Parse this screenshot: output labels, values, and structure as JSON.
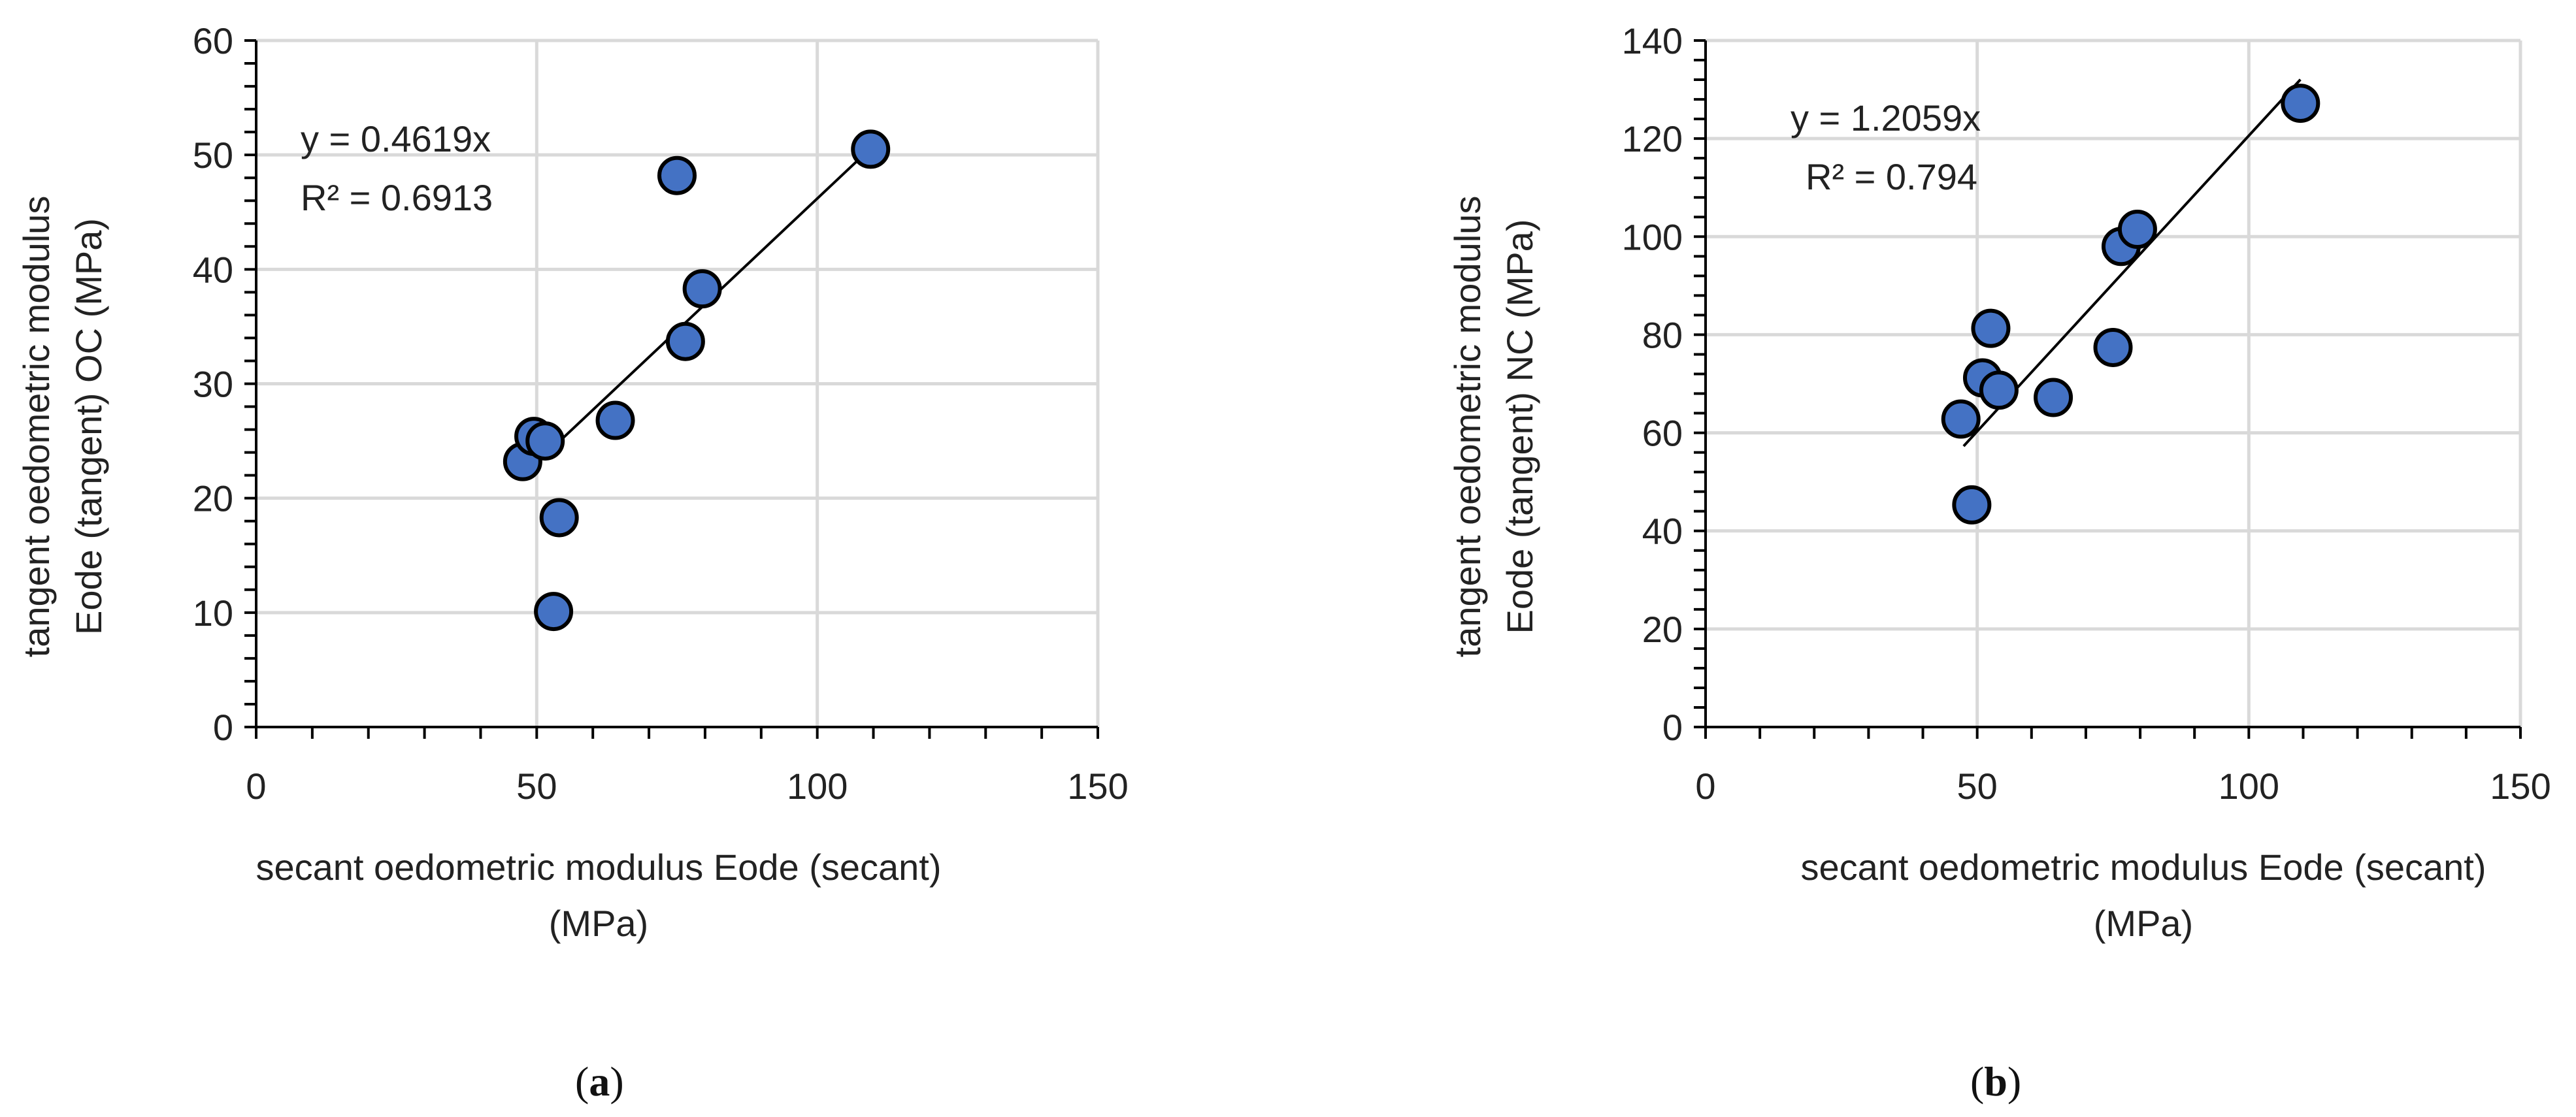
{
  "figure": {
    "marker_fill": "#4472C4",
    "marker_stroke": "#000000",
    "grid_color": "#D9D9D9",
    "trend_color": "#000000"
  },
  "chart_data": [
    {
      "type": "scatter",
      "panel_label": "a",
      "xlabel": [
        "secant oedometric modulus Eode (secant)",
        "(MPa)"
      ],
      "ylabel": [
        "tangent oedometric modulus",
        "Eode (tangent) OC (MPa)"
      ],
      "xlim": [
        0,
        150
      ],
      "ylim": [
        0,
        60
      ],
      "xticks": [
        0,
        50,
        100,
        150
      ],
      "yticks": [
        0,
        10,
        20,
        30,
        40,
        50,
        60
      ],
      "grid": true,
      "points": [
        {
          "x": 47.5,
          "y": 23.2
        },
        {
          "x": 49.5,
          "y": 25.4
        },
        {
          "x": 51.5,
          "y": 25.0
        },
        {
          "x": 53.0,
          "y": 10.1
        },
        {
          "x": 54.0,
          "y": 18.3
        },
        {
          "x": 64.0,
          "y": 26.8
        },
        {
          "x": 75.0,
          "y": 48.2
        },
        {
          "x": 76.5,
          "y": 33.7
        },
        {
          "x": 79.5,
          "y": 38.3
        },
        {
          "x": 109.5,
          "y": 50.5
        }
      ],
      "trendline": {
        "slope": 0.4619,
        "x_range": [
          53,
          109.5
        ]
      },
      "equation": "y = 0.4619x",
      "r2": "R² = 0.6913"
    },
    {
      "type": "scatter",
      "panel_label": "b",
      "xlabel": [
        "secant oedometric modulus Eode (secant)",
        "(MPa)"
      ],
      "ylabel": [
        "tangent oedometric modulus",
        "Eode (tangent) NC (MPa)"
      ],
      "xlim": [
        0,
        150
      ],
      "ylim": [
        0,
        140
      ],
      "xticks": [
        0,
        50,
        100,
        150
      ],
      "yticks": [
        0,
        20,
        40,
        60,
        80,
        100,
        120,
        140
      ],
      "grid": true,
      "points": [
        {
          "x": 47.0,
          "y": 62.8
        },
        {
          "x": 49.0,
          "y": 45.3
        },
        {
          "x": 51.0,
          "y": 71.2
        },
        {
          "x": 52.5,
          "y": 81.3
        },
        {
          "x": 54.0,
          "y": 68.7
        },
        {
          "x": 64.0,
          "y": 67.2
        },
        {
          "x": 75.0,
          "y": 77.4
        },
        {
          "x": 76.5,
          "y": 98.0
        },
        {
          "x": 79.5,
          "y": 101.5
        },
        {
          "x": 109.5,
          "y": 127.2
        }
      ],
      "trendline": {
        "slope": 1.2059,
        "x_range": [
          47.5,
          109.5
        ]
      },
      "equation": "y = 1.2059x",
      "r2": "R² = 0.794"
    }
  ]
}
